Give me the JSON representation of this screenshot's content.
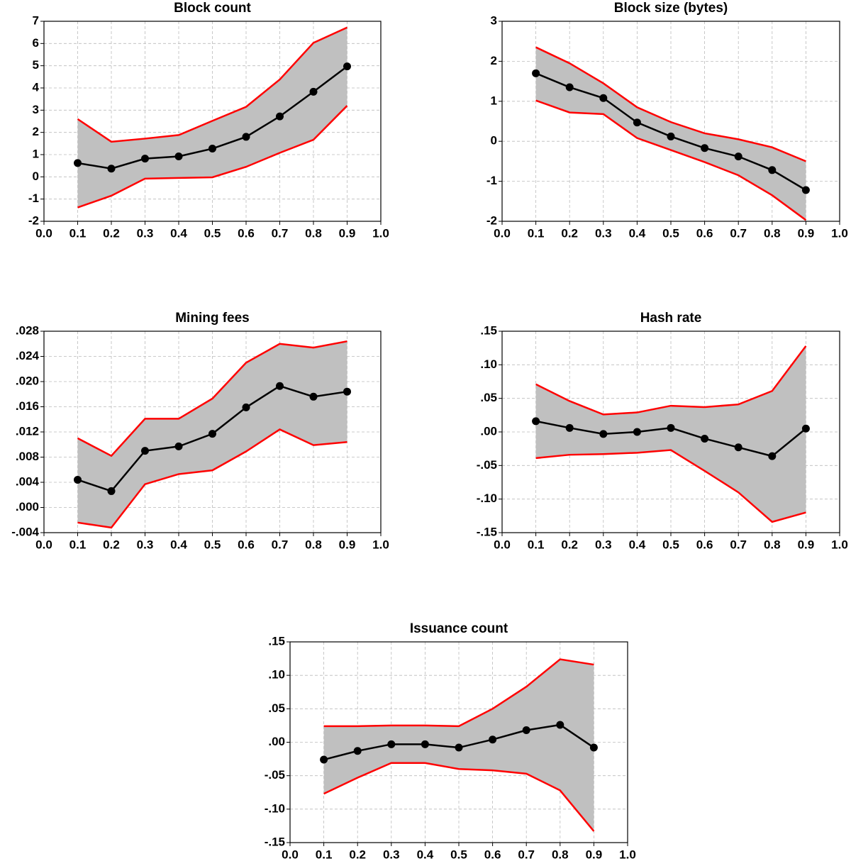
{
  "chart_data": [
    {
      "type": "line",
      "title": "Block count",
      "grid": true,
      "band": {
        "color": "#c0c0c0"
      },
      "x": [
        0.1,
        0.2,
        0.3,
        0.4,
        0.5,
        0.6,
        0.7,
        0.8,
        0.9
      ],
      "xlim": [
        0,
        1
      ],
      "xticks": [
        {
          "value": 0,
          "label": "0.0"
        },
        0.1,
        0.2,
        0.3,
        0.4,
        0.5,
        0.6,
        0.7,
        0.8,
        0.9,
        {
          "value": 1,
          "label": "1.0"
        }
      ],
      "ylim": [
        -2,
        7
      ],
      "yticks": [
        -2,
        -1,
        0,
        1,
        2,
        3,
        4,
        5,
        6,
        7
      ],
      "series": [
        {
          "color": "#000000",
          "marker": true,
          "values": [
            0.62,
            0.37,
            0.82,
            0.92,
            1.27,
            1.8,
            2.72,
            3.83,
            4.97
          ]
        },
        {
          "color": "#ff0000",
          "values": [
            2.6,
            1.58,
            1.72,
            1.88,
            2.52,
            3.15,
            4.38,
            6.03,
            6.72
          ]
        },
        {
          "color": "#ff0000",
          "values": [
            -1.38,
            -0.85,
            -0.08,
            -0.05,
            -0.02,
            0.45,
            1.08,
            1.67,
            3.2
          ]
        }
      ]
    },
    {
      "type": "line",
      "title": "Block size (bytes)",
      "grid": true,
      "band": {
        "color": "#c0c0c0"
      },
      "x": [
        0.1,
        0.2,
        0.3,
        0.4,
        0.5,
        0.6,
        0.7,
        0.8,
        0.9
      ],
      "xlim": [
        0,
        1
      ],
      "xticks": [
        {
          "value": 0,
          "label": "0.0"
        },
        0.1,
        0.2,
        0.3,
        0.4,
        0.5,
        0.6,
        0.7,
        0.8,
        0.9,
        {
          "value": 1,
          "label": "1.0"
        }
      ],
      "ylim": [
        -2,
        3
      ],
      "yticks": [
        -2,
        -1,
        0,
        1,
        2,
        3
      ],
      "series": [
        {
          "color": "#000000",
          "marker": true,
          "values": [
            1.7,
            1.35,
            1.08,
            0.47,
            0.12,
            -0.17,
            -0.38,
            -0.72,
            -1.22
          ]
        },
        {
          "color": "#ff0000",
          "values": [
            2.35,
            1.95,
            1.45,
            0.85,
            0.48,
            0.2,
            0.05,
            -0.15,
            -0.5
          ]
        },
        {
          "color": "#ff0000",
          "values": [
            1.02,
            0.72,
            0.68,
            0.08,
            -0.22,
            -0.52,
            -0.85,
            -1.35,
            -1.97
          ]
        }
      ]
    },
    {
      "type": "line",
      "title": "Mining fees",
      "grid": true,
      "band": {
        "color": "#c0c0c0"
      },
      "x": [
        0.1,
        0.2,
        0.3,
        0.4,
        0.5,
        0.6,
        0.7,
        0.8,
        0.9
      ],
      "xlim": [
        0,
        1
      ],
      "xticks": [
        {
          "value": 0,
          "label": "0.0"
        },
        0.1,
        0.2,
        0.3,
        0.4,
        0.5,
        0.6,
        0.7,
        0.8,
        0.9,
        {
          "value": 1,
          "label": "1.0"
        }
      ],
      "ylim": [
        -0.004,
        0.028
      ],
      "yticks": [
        {
          "value": -0.004,
          "label": "-.004"
        },
        {
          "value": 0,
          "label": ".000"
        },
        {
          "value": 0.004,
          "label": ".004"
        },
        {
          "value": 0.008,
          "label": ".008"
        },
        {
          "value": 0.012,
          "label": ".012"
        },
        {
          "value": 0.016,
          "label": ".016"
        },
        {
          "value": 0.02,
          "label": ".020"
        },
        {
          "value": 0.024,
          "label": ".024"
        },
        {
          "value": 0.028,
          "label": ".028"
        }
      ],
      "series": [
        {
          "color": "#000000",
          "marker": true,
          "values": [
            0.0044,
            0.0026,
            0.009,
            0.0097,
            0.0117,
            0.0159,
            0.0193,
            0.0176,
            0.0184
          ]
        },
        {
          "color": "#ff0000",
          "values": [
            0.011,
            0.0082,
            0.0141,
            0.0141,
            0.0173,
            0.023,
            0.026,
            0.0254,
            0.0264
          ]
        },
        {
          "color": "#ff0000",
          "values": [
            -0.0024,
            -0.0032,
            0.0037,
            0.0053,
            0.0059,
            0.0089,
            0.0124,
            0.0099,
            0.0104
          ]
        }
      ]
    },
    {
      "type": "line",
      "title": "Hash rate",
      "grid": true,
      "band": {
        "color": "#c0c0c0"
      },
      "x": [
        0.1,
        0.2,
        0.3,
        0.4,
        0.5,
        0.6,
        0.7,
        0.8,
        0.9
      ],
      "xlim": [
        0,
        1
      ],
      "xticks": [
        {
          "value": 0,
          "label": "0.0"
        },
        0.1,
        0.2,
        0.3,
        0.4,
        0.5,
        0.6,
        0.7,
        0.8,
        0.9,
        {
          "value": 1,
          "label": "1.0"
        }
      ],
      "ylim": [
        -0.15,
        0.15
      ],
      "yticks": [
        {
          "value": -0.15,
          "label": "-.15"
        },
        {
          "value": -0.1,
          "label": "-.10"
        },
        {
          "value": -0.05,
          "label": "-.05"
        },
        {
          "value": 0,
          "label": ".00"
        },
        {
          "value": 0.05,
          "label": ".05"
        },
        {
          "value": 0.1,
          "label": ".10"
        },
        {
          "value": 0.15,
          "label": ".15"
        }
      ],
      "series": [
        {
          "color": "#000000",
          "marker": true,
          "values": [
            0.016,
            0.006,
            -0.003,
            0,
            0.006,
            -0.01,
            -0.023,
            -0.036,
            0.005
          ]
        },
        {
          "color": "#ff0000",
          "values": [
            0.071,
            0.046,
            0.026,
            0.029,
            0.039,
            0.037,
            0.041,
            0.061,
            0.128
          ]
        },
        {
          "color": "#ff0000",
          "values": [
            -0.039,
            -0.034,
            -0.033,
            -0.031,
            -0.027,
            -0.058,
            -0.09,
            -0.134,
            -0.12
          ]
        }
      ]
    },
    {
      "type": "line",
      "title": "Issuance count",
      "grid": true,
      "band": {
        "color": "#c0c0c0"
      },
      "x": [
        0.1,
        0.2,
        0.3,
        0.4,
        0.5,
        0.6,
        0.7,
        0.8,
        0.9
      ],
      "xlim": [
        0,
        1
      ],
      "xticks": [
        {
          "value": 0,
          "label": "0.0"
        },
        0.1,
        0.2,
        0.3,
        0.4,
        0.5,
        0.6,
        0.7,
        0.8,
        0.9,
        {
          "value": 1,
          "label": "1.0"
        }
      ],
      "ylim": [
        -0.15,
        0.15
      ],
      "yticks": [
        {
          "value": -0.15,
          "label": "-.15"
        },
        {
          "value": -0.1,
          "label": "-.10"
        },
        {
          "value": -0.05,
          "label": "-.05"
        },
        {
          "value": 0,
          "label": ".00"
        },
        {
          "value": 0.05,
          "label": ".05"
        },
        {
          "value": 0.1,
          "label": ".10"
        },
        {
          "value": 0.15,
          "label": ".15"
        }
      ],
      "series": [
        {
          "color": "#000000",
          "marker": true,
          "values": [
            -0.026,
            -0.013,
            -0.003,
            -0.003,
            -0.008,
            0.004,
            0.018,
            0.026,
            -0.008
          ]
        },
        {
          "color": "#ff0000",
          "values": [
            0.024,
            0.024,
            0.025,
            0.025,
            0.024,
            0.05,
            0.083,
            0.124,
            0.116
          ]
        },
        {
          "color": "#ff0000",
          "values": [
            -0.077,
            -0.053,
            -0.031,
            -0.031,
            -0.04,
            -0.042,
            -0.047,
            -0.072,
            -0.133
          ]
        }
      ]
    }
  ]
}
